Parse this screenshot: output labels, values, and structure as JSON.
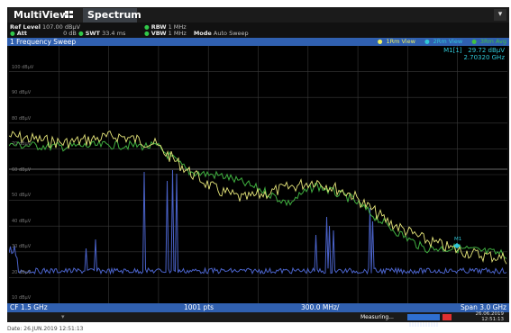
{
  "tabs": {
    "multiview": "MultiView",
    "spectrum": "Spectrum"
  },
  "settings": {
    "ref_level_label": "Ref Level",
    "ref_level_value": "107.00 dBµV",
    "att_label": "Att",
    "att_value": "0 dB",
    "swt_label": "SWT",
    "swt_value": "33.4 ms",
    "rbw_label": "RBW",
    "rbw_value": "1 MHz",
    "vbw_label": "VBW",
    "vbw_value": "1 MHz",
    "mode_label": "Mode",
    "mode_value": "Auto Sweep"
  },
  "sweep": {
    "title": "1 Frequency Sweep",
    "traces": [
      "1Rm View",
      "2Rm View",
      "3Rm Avg"
    ],
    "trace_colors": [
      "#f0f060",
      "#30c8d8",
      "#40c040"
    ]
  },
  "marker": {
    "label": "M1[1]",
    "level": "29.72 dBµV",
    "freq": "2.70320 GHz",
    "plot_tag": "M1"
  },
  "y_labels": [
    "100 dBµV",
    "90 dBµV",
    "80 dBµV",
    "70 dBµV",
    "60 dBµV",
    "50 dBµV",
    "40 dBµV",
    "30 dBµV",
    "20 dBµV",
    "10 dBµV"
  ],
  "bottom": {
    "cf": "CF 1.5 GHz",
    "pts": "1001 pts",
    "span_div": "300.0 MHz/",
    "span": "Span 3.0 GHz"
  },
  "status": {
    "text": "Measuring...",
    "date": "26.06.2019",
    "time": "12:51:13"
  },
  "footer": {
    "date_line": "Date: 26.JUN.2019  12:51:13"
  }
}
